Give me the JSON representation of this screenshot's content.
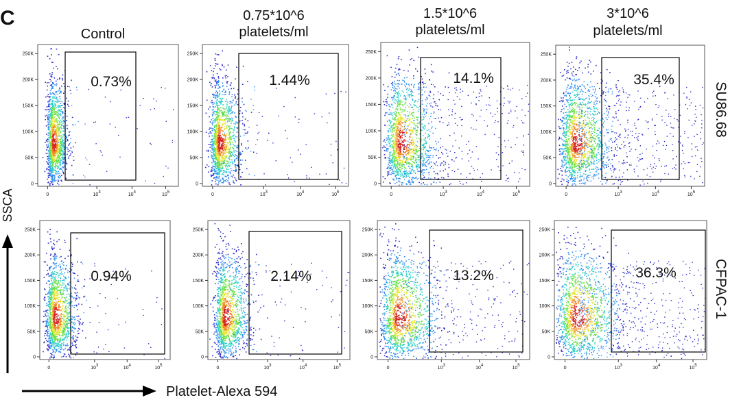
{
  "panel_letter": "C",
  "column_titles": [
    [
      "Control"
    ],
    [
      "0.75*10^6",
      "platelets/ml"
    ],
    [
      "1.5*10^6",
      "platelets/ml"
    ],
    [
      "3*10^6",
      "platelets/ml"
    ]
  ],
  "row_labels": [
    "SU86.68",
    "CFPAC-1"
  ],
  "y_axis_title": "SSCA",
  "x_axis_title": "Platelet-Alexa 594",
  "chart_data": {
    "type": "scatter",
    "plot_style": "flow cytometry pseudocolor density dot plot",
    "xlabel": "Platelet-Alexa 594",
    "ylabel": "SSCA",
    "x_scale": "biexponential",
    "x_tick_labels": [
      {
        "value": 0,
        "label": "0"
      },
      {
        "value": 1000,
        "label": "10^3"
      },
      {
        "value": 10000,
        "label": "10^4"
      },
      {
        "value": 100000,
        "label": "10^5"
      }
    ],
    "y_tick_labels": [
      {
        "value": 0,
        "label": "0"
      },
      {
        "value": 50000,
        "label": "50K"
      },
      {
        "value": 100000,
        "label": "100K"
      },
      {
        "value": 150000,
        "label": "150K"
      },
      {
        "value": 200000,
        "label": "200K"
      },
      {
        "value": 250000,
        "label": "250K"
      }
    ],
    "ylim": [
      0,
      262144
    ],
    "density_colors": [
      "#2a2ac8",
      "#2f8cf0",
      "#2fd0c8",
      "#6ce04a",
      "#e6e63a",
      "#f08a2a",
      "#d42020"
    ],
    "panels": [
      {
        "row": "SU86.68",
        "column": "Control",
        "gate_percent": "0.73%",
        "spread": 0.15,
        "tail": 0.02
      },
      {
        "row": "SU86.68",
        "column": "0.75*10^6 platelets/ml",
        "gate_percent": "1.44%",
        "spread": 0.3,
        "tail": 0.05
      },
      {
        "row": "SU86.68",
        "column": "1.5*10^6 platelets/ml",
        "gate_percent": "14.1%",
        "spread": 0.6,
        "tail": 0.38
      },
      {
        "row": "SU86.68",
        "column": "3*10^6 platelets/ml",
        "gate_percent": "35.4%",
        "spread": 0.6,
        "tail": 0.55
      },
      {
        "row": "CFPAC-1",
        "column": "Control",
        "gate_percent": "0.94%",
        "spread": 0.3,
        "tail": 0.02
      },
      {
        "row": "CFPAC-1",
        "column": "0.75*10^6 platelets/ml",
        "gate_percent": "2.14%",
        "spread": 0.35,
        "tail": 0.06
      },
      {
        "row": "CFPAC-1",
        "column": "1.5*10^6 platelets/ml",
        "gate_percent": "13.2%",
        "spread": 0.7,
        "tail": 0.32
      },
      {
        "row": "CFPAC-1",
        "column": "3*10^6 platelets/ml",
        "gate_percent": "36.3%",
        "spread": 0.8,
        "tail": 0.55
      }
    ]
  }
}
